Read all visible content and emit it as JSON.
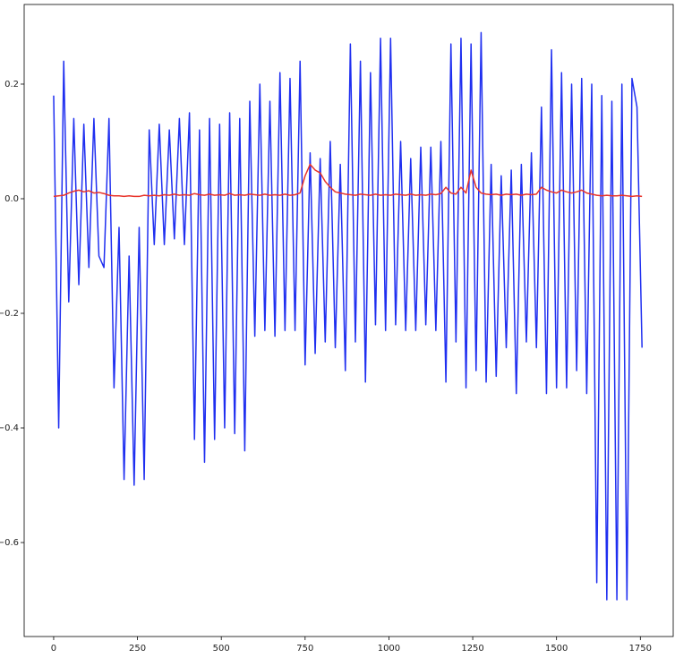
{
  "chart_data": {
    "type": "line",
    "xlim": [
      -88,
      1848
    ],
    "ylim": [
      -0.764,
      0.339
    ],
    "xticks": [
      0,
      250,
      500,
      750,
      1000,
      1250,
      1500,
      1750
    ],
    "yticks": [
      {
        "value": -0.6,
        "label": "−0.6"
      },
      {
        "value": -0.4,
        "label": "−0.4"
      },
      {
        "value": -0.2,
        "label": "−0.2"
      },
      {
        "value": 0,
        "label": "0.0"
      },
      0.2
    ],
    "x": [
      0,
      15,
      30,
      45,
      60,
      75,
      90,
      105,
      120,
      135,
      150,
      165,
      180,
      195,
      210,
      225,
      240,
      255,
      270,
      285,
      300,
      315,
      330,
      345,
      360,
      375,
      390,
      405,
      420,
      435,
      450,
      465,
      480,
      495,
      510,
      525,
      540,
      555,
      570,
      585,
      600,
      615,
      630,
      645,
      660,
      675,
      690,
      705,
      720,
      735,
      750,
      765,
      780,
      795,
      810,
      825,
      840,
      855,
      870,
      885,
      900,
      915,
      930,
      945,
      960,
      975,
      990,
      1005,
      1020,
      1035,
      1050,
      1065,
      1080,
      1095,
      1110,
      1125,
      1140,
      1155,
      1170,
      1185,
      1200,
      1215,
      1230,
      1245,
      1260,
      1275,
      1290,
      1305,
      1320,
      1335,
      1350,
      1365,
      1380,
      1395,
      1410,
      1425,
      1440,
      1455,
      1470,
      1485,
      1500,
      1515,
      1530,
      1545,
      1560,
      1575,
      1590,
      1605,
      1620,
      1635,
      1650,
      1665,
      1680,
      1695,
      1710,
      1725,
      1740,
      1755
    ],
    "series": [
      {
        "color": "#1f2ff0",
        "values": [
          0.18,
          -0.4,
          0.24,
          -0.18,
          0.14,
          -0.15,
          0.13,
          -0.12,
          0.14,
          -0.1,
          -0.12,
          0.14,
          -0.33,
          -0.05,
          -0.49,
          -0.1,
          -0.5,
          -0.05,
          -0.49,
          0.12,
          -0.08,
          0.13,
          -0.08,
          0.12,
          -0.07,
          0.14,
          -0.08,
          0.15,
          -0.42,
          0.12,
          -0.46,
          0.14,
          -0.42,
          0.13,
          -0.4,
          0.15,
          -0.41,
          0.14,
          -0.44,
          0.17,
          -0.24,
          0.2,
          -0.23,
          0.17,
          -0.24,
          0.22,
          -0.23,
          0.21,
          -0.23,
          0.24,
          -0.29,
          0.08,
          -0.27,
          0.07,
          -0.25,
          0.1,
          -0.26,
          0.06,
          -0.3,
          0.27,
          -0.25,
          0.24,
          -0.32,
          0.22,
          -0.22,
          0.28,
          -0.23,
          0.28,
          -0.22,
          0.1,
          -0.23,
          0.07,
          -0.23,
          0.09,
          -0.22,
          0.09,
          -0.23,
          0.1,
          -0.32,
          0.27,
          -0.25,
          0.28,
          -0.33,
          0.27,
          -0.3,
          0.29,
          -0.32,
          0.06,
          -0.31,
          0.04,
          -0.26,
          0.05,
          -0.34,
          0.06,
          -0.25,
          0.08,
          -0.26,
          0.16,
          -0.34,
          0.26,
          -0.33,
          0.22,
          -0.33,
          0.2,
          -0.3,
          0.21,
          -0.34,
          0.2,
          -0.67,
          0.18,
          -0.7,
          0.17,
          -0.7,
          0.2,
          -0.7,
          0.21,
          0.16,
          -0.26
        ]
      },
      {
        "color": "#e8332a",
        "values": [
          0.004,
          0.005,
          0.006,
          0.01,
          0.013,
          0.015,
          0.012,
          0.014,
          0.01,
          0.011,
          0.009,
          0.006,
          0.005,
          0.005,
          0.004,
          0.005,
          0.004,
          0.004,
          0.006,
          0.005,
          0.006,
          0.005,
          0.007,
          0.006,
          0.008,
          0.006,
          0.007,
          0.006,
          0.009,
          0.007,
          0.006,
          0.008,
          0.006,
          0.007,
          0.006,
          0.009,
          0.006,
          0.007,
          0.006,
          0.008,
          0.007,
          0.006,
          0.008,
          0.006,
          0.007,
          0.006,
          0.008,
          0.006,
          0.007,
          0.01,
          0.04,
          0.06,
          0.05,
          0.045,
          0.03,
          0.02,
          0.012,
          0.01,
          0.008,
          0.007,
          0.006,
          0.008,
          0.007,
          0.006,
          0.008,
          0.006,
          0.007,
          0.006,
          0.008,
          0.007,
          0.006,
          0.008,
          0.006,
          0.007,
          0.006,
          0.008,
          0.007,
          0.009,
          0.02,
          0.01,
          0.008,
          0.02,
          0.01,
          0.05,
          0.02,
          0.01,
          0.008,
          0.007,
          0.008,
          0.006,
          0.008,
          0.007,
          0.008,
          0.006,
          0.008,
          0.007,
          0.008,
          0.02,
          0.015,
          0.012,
          0.01,
          0.015,
          0.012,
          0.01,
          0.012,
          0.015,
          0.01,
          0.008,
          0.006,
          0.005,
          0.006,
          0.005,
          0.005,
          0.006,
          0.005,
          0.004,
          0.005,
          0.004
        ]
      }
    ]
  }
}
